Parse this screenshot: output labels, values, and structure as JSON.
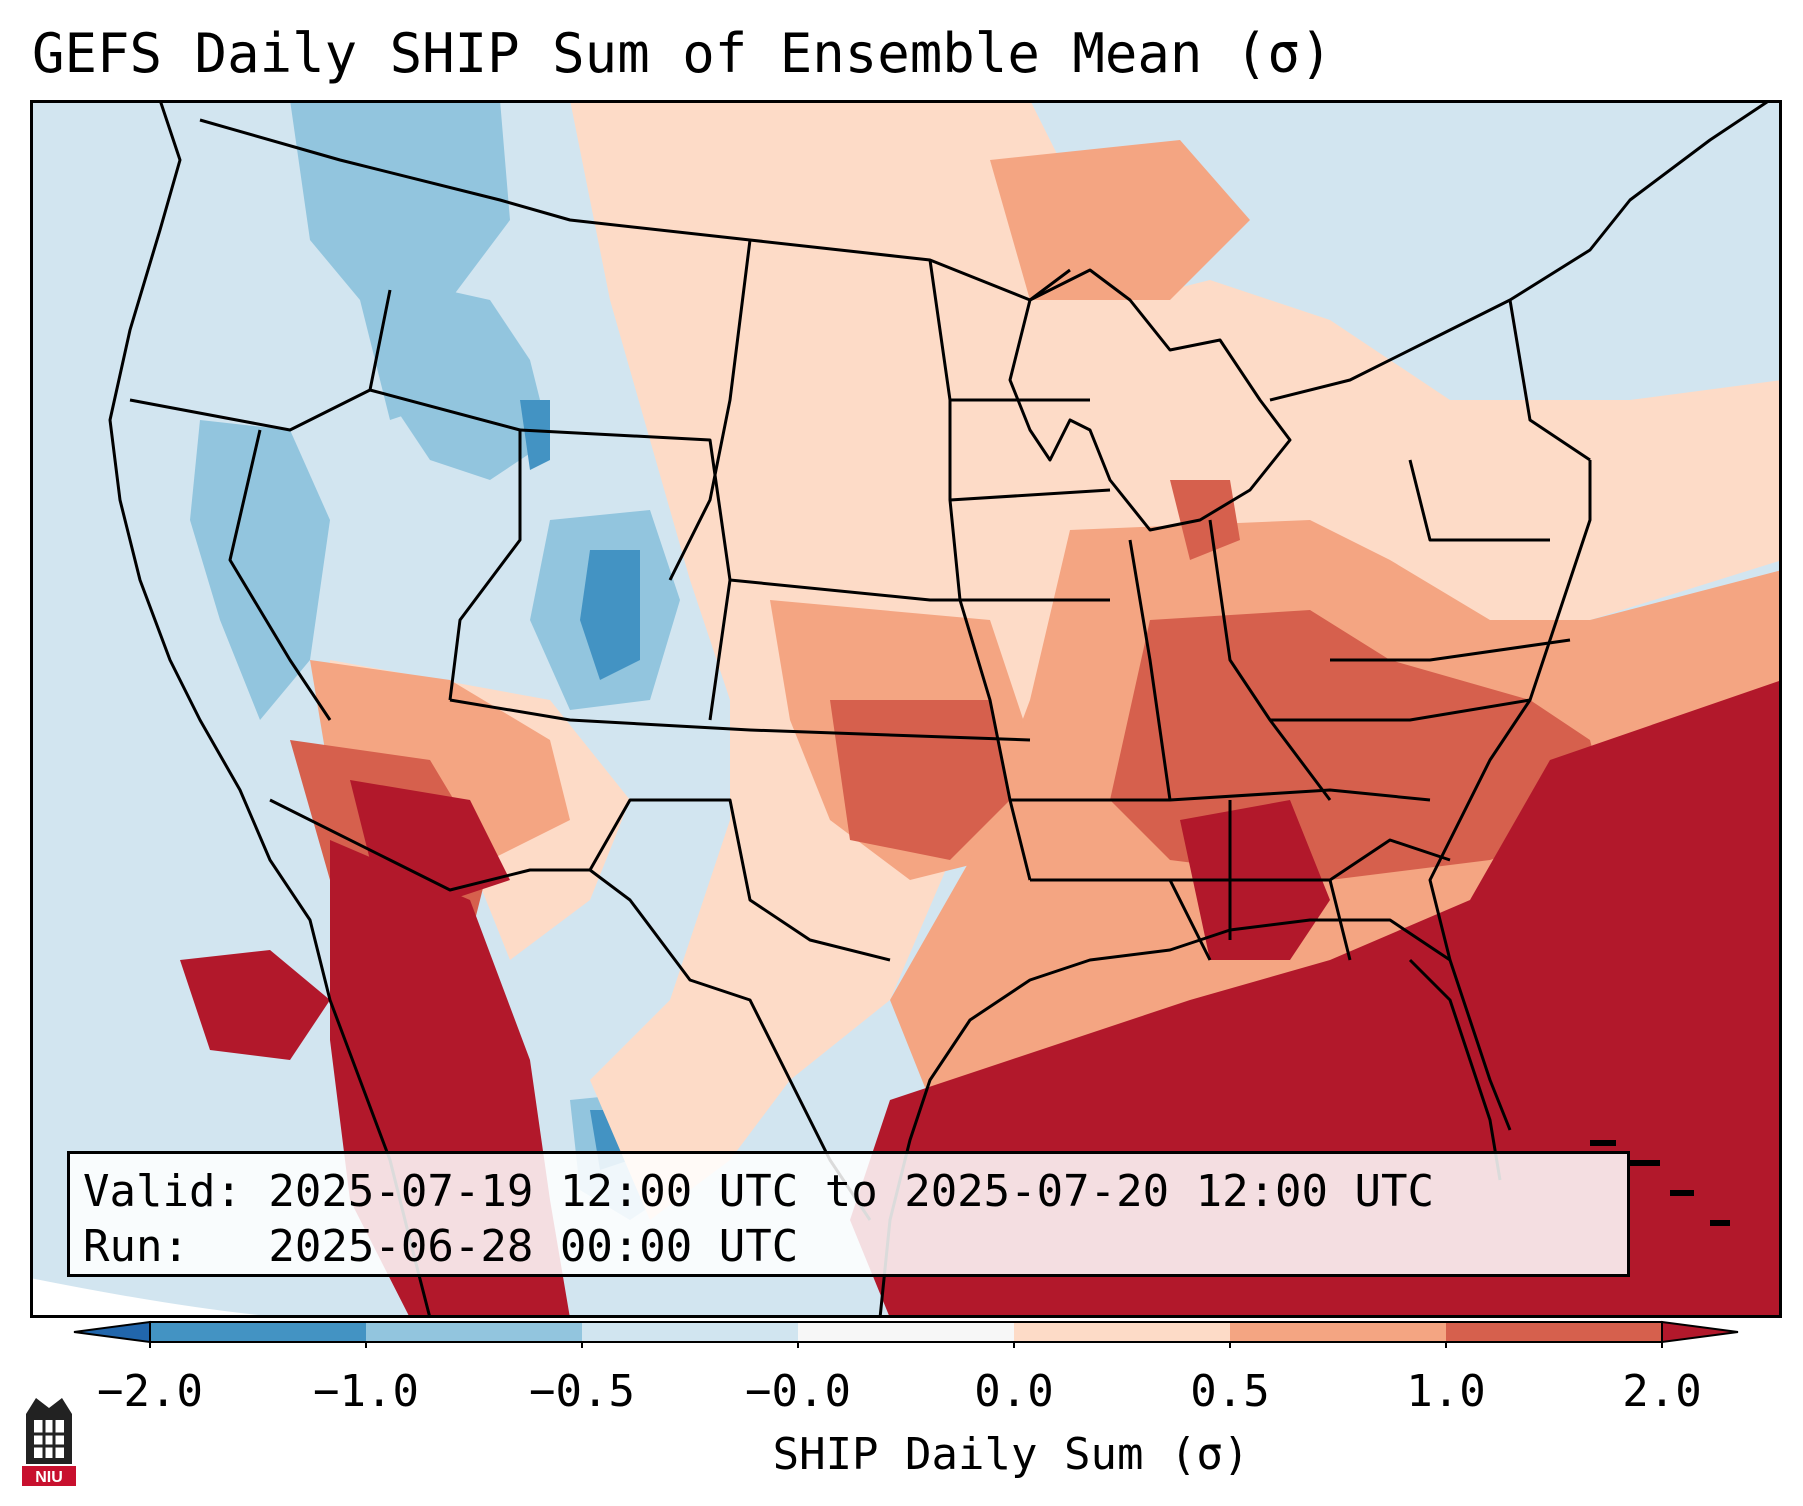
{
  "title": "GEFS Daily SHIP Sum of Ensemble Mean (σ)",
  "valid_line": "Valid: 2025-07-19 12:00 UTC to 2025-07-20 12:00 UTC",
  "run_line": "Run:   2025-06-28 00:00 UTC",
  "map": {
    "region": "CONUS",
    "colors": {
      "ocean_background": "#d2e5f0",
      "border_lines": "#000000"
    }
  },
  "colorbar": {
    "label": "SHIP Daily Sum (σ)",
    "ticks": [
      "−2.0",
      "−1.0",
      "−0.5",
      "−0.0",
      "0.0",
      "0.5",
      "1.0",
      "2.0"
    ],
    "colors": [
      "#2166ac",
      "#4393c3",
      "#92c5de",
      "#d1e5f0",
      "#f7f7f7",
      "#fddbc7",
      "#f4a582",
      "#d6604d",
      "#b2182b"
    ],
    "extend": "both"
  },
  "logo": {
    "text": "NIU"
  }
}
